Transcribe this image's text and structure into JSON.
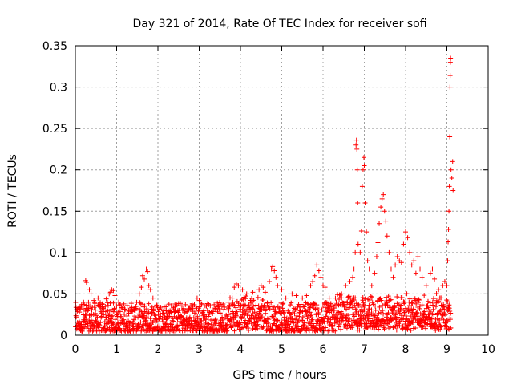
{
  "chart_data": {
    "type": "scatter",
    "title": "Day 321 of 2014, Rate Of TEC Index for receiver sofi",
    "xlabel": "GPS time / hours",
    "ylabel": "ROTI / TECUs",
    "xlim": [
      0,
      10
    ],
    "ylim": [
      0,
      0.35
    ],
    "x_ticks": [
      "0",
      "1",
      "2",
      "3",
      "4",
      "5",
      "6",
      "7",
      "8",
      "9",
      "10"
    ],
    "y_ticks": [
      "0",
      "0.05",
      "0.1",
      "0.15",
      "0.2",
      "0.25",
      "0.3",
      "0.35"
    ],
    "grid": true,
    "marker": "+",
    "series_color": "#ff0000",
    "baseline_band": {
      "x_range": [
        0,
        9.1
      ],
      "typical_roti": [
        0.005,
        0.04
      ],
      "note": "dense continuous band of points"
    },
    "series": [
      {
        "name": "sofi",
        "points": [
          [
            0.02,
            0.022
          ],
          [
            0.05,
            0.031
          ],
          [
            0.1,
            0.028
          ],
          [
            0.14,
            0.035
          ],
          [
            0.2,
            0.04
          ],
          [
            0.25,
            0.066
          ],
          [
            0.27,
            0.064
          ],
          [
            0.34,
            0.055
          ],
          [
            0.38,
            0.05
          ],
          [
            0.45,
            0.042
          ],
          [
            0.55,
            0.045
          ],
          [
            0.65,
            0.038
          ],
          [
            0.75,
            0.044
          ],
          [
            0.82,
            0.05
          ],
          [
            0.85,
            0.052
          ],
          [
            0.88,
            0.055
          ],
          [
            0.92,
            0.054
          ],
          [
            0.96,
            0.048
          ],
          [
            1.05,
            0.04
          ],
          [
            1.15,
            0.035
          ],
          [
            1.25,
            0.03
          ],
          [
            1.35,
            0.032
          ],
          [
            1.45,
            0.03
          ],
          [
            1.55,
            0.05
          ],
          [
            1.6,
            0.058
          ],
          [
            1.63,
            0.072
          ],
          [
            1.67,
            0.068
          ],
          [
            1.72,
            0.08
          ],
          [
            1.75,
            0.077
          ],
          [
            1.78,
            0.06
          ],
          [
            1.82,
            0.055
          ],
          [
            1.88,
            0.045
          ],
          [
            1.95,
            0.035
          ],
          [
            2.05,
            0.032
          ],
          [
            2.2,
            0.03
          ],
          [
            2.4,
            0.028
          ],
          [
            2.6,
            0.03
          ],
          [
            2.75,
            0.032
          ],
          [
            2.85,
            0.035
          ],
          [
            2.95,
            0.045
          ],
          [
            3.0,
            0.042
          ],
          [
            3.05,
            0.038
          ],
          [
            3.2,
            0.03
          ],
          [
            3.4,
            0.032
          ],
          [
            3.55,
            0.035
          ],
          [
            3.7,
            0.04
          ],
          [
            3.8,
            0.045
          ],
          [
            3.85,
            0.058
          ],
          [
            3.9,
            0.062
          ],
          [
            3.95,
            0.06
          ],
          [
            4.05,
            0.055
          ],
          [
            4.15,
            0.05
          ],
          [
            4.3,
            0.052
          ],
          [
            4.45,
            0.055
          ],
          [
            4.5,
            0.06
          ],
          [
            4.55,
            0.058
          ],
          [
            4.6,
            0.052
          ],
          [
            4.7,
            0.065
          ],
          [
            4.75,
            0.08
          ],
          [
            4.78,
            0.083
          ],
          [
            4.82,
            0.078
          ],
          [
            4.86,
            0.07
          ],
          [
            4.9,
            0.06
          ],
          [
            5.0,
            0.055
          ],
          [
            5.1,
            0.045
          ],
          [
            5.25,
            0.05
          ],
          [
            5.35,
            0.048
          ],
          [
            5.5,
            0.045
          ],
          [
            5.6,
            0.048
          ],
          [
            5.7,
            0.06
          ],
          [
            5.75,
            0.065
          ],
          [
            5.8,
            0.072
          ],
          [
            5.85,
            0.085
          ],
          [
            5.9,
            0.078
          ],
          [
            5.95,
            0.07
          ],
          [
            6.0,
            0.06
          ],
          [
            6.05,
            0.058
          ],
          [
            6.15,
            0.045
          ],
          [
            6.3,
            0.045
          ],
          [
            6.45,
            0.05
          ],
          [
            6.55,
            0.06
          ],
          [
            6.65,
            0.065
          ],
          [
            6.72,
            0.07
          ],
          [
            6.75,
            0.08
          ],
          [
            6.78,
            0.1
          ],
          [
            6.8,
            0.23
          ],
          [
            6.81,
            0.236
          ],
          [
            6.82,
            0.225
          ],
          [
            6.83,
            0.2
          ],
          [
            6.84,
            0.16
          ],
          [
            6.85,
            0.11
          ],
          [
            6.9,
            0.1
          ],
          [
            6.93,
            0.126
          ],
          [
            6.95,
            0.18
          ],
          [
            6.97,
            0.2
          ],
          [
            6.99,
            0.215
          ],
          [
            7.0,
            0.205
          ],
          [
            7.02,
            0.16
          ],
          [
            7.05,
            0.125
          ],
          [
            7.08,
            0.09
          ],
          [
            7.12,
            0.08
          ],
          [
            7.18,
            0.06
          ],
          [
            7.25,
            0.075
          ],
          [
            7.3,
            0.095
          ],
          [
            7.33,
            0.112
          ],
          [
            7.36,
            0.135
          ],
          [
            7.4,
            0.155
          ],
          [
            7.43,
            0.165
          ],
          [
            7.46,
            0.17
          ],
          [
            7.49,
            0.15
          ],
          [
            7.52,
            0.138
          ],
          [
            7.55,
            0.12
          ],
          [
            7.6,
            0.1
          ],
          [
            7.65,
            0.08
          ],
          [
            7.7,
            0.07
          ],
          [
            7.75,
            0.085
          ],
          [
            7.8,
            0.095
          ],
          [
            7.85,
            0.09
          ],
          [
            7.9,
            0.088
          ],
          [
            7.95,
            0.11
          ],
          [
            8.0,
            0.125
          ],
          [
            8.05,
            0.118
          ],
          [
            8.1,
            0.1
          ],
          [
            8.15,
            0.085
          ],
          [
            8.2,
            0.09
          ],
          [
            8.25,
            0.075
          ],
          [
            8.3,
            0.095
          ],
          [
            8.35,
            0.08
          ],
          [
            8.4,
            0.07
          ],
          [
            8.5,
            0.06
          ],
          [
            8.6,
            0.075
          ],
          [
            8.65,
            0.08
          ],
          [
            8.7,
            0.068
          ],
          [
            8.8,
            0.055
          ],
          [
            8.9,
            0.06
          ],
          [
            8.95,
            0.065
          ],
          [
            9.0,
            0.06
          ],
          [
            9.02,
            0.09
          ],
          [
            9.03,
            0.113
          ],
          [
            9.04,
            0.128
          ],
          [
            9.05,
            0.15
          ],
          [
            9.06,
            0.18
          ],
          [
            9.07,
            0.24
          ],
          [
            9.075,
            0.3
          ],
          [
            9.08,
            0.314
          ],
          [
            9.085,
            0.33
          ],
          [
            9.09,
            0.335
          ],
          [
            9.1,
            0.2
          ],
          [
            9.12,
            0.19
          ],
          [
            9.14,
            0.21
          ],
          [
            9.15,
            0.175
          ]
        ]
      }
    ]
  }
}
